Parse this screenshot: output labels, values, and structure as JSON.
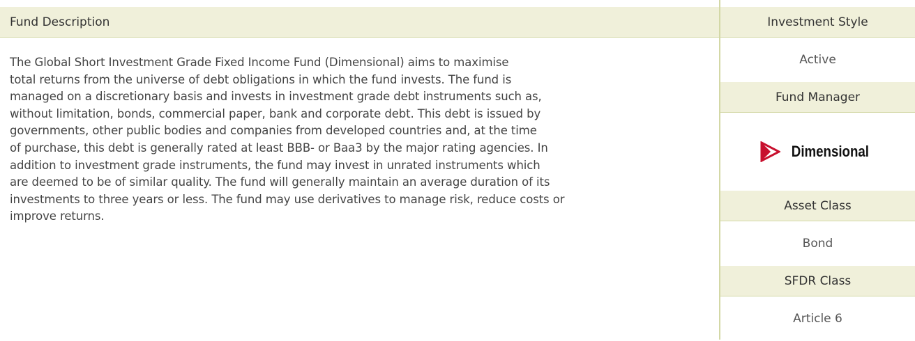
{
  "fund_description": {
    "title": "Fund Description",
    "lines": [
      "The Global Short Investment Grade Fixed Income Fund (Dimensional) aims to maximise",
      "total returns from the universe of debt obligations in which the fund invests. The fund is",
      "managed on a discretionary basis and invests in investment grade debt instruments such as,",
      "without limitation, bonds, commercial paper, bank and corporate debt. This debt is issued by",
      "governments, other public bodies and companies from developed countries and, at the time",
      "of purchase, this debt is generally rated at least BBB- or Baa3 by the major rating agencies. In",
      "addition to investment grade instruments, the fund may invest in unrated instruments which",
      "are deemed to be of similar quality. The fund will generally maintain an average duration of its",
      "investments to three years or less. The fund may use derivatives to manage risk, reduce costs or",
      "improve returns."
    ]
  },
  "sidebar": {
    "investment_style": {
      "label": "Investment Style",
      "value": "Active"
    },
    "fund_manager": {
      "label": "Fund Manager",
      "logo_text": "Dimensional"
    },
    "asset_class": {
      "label": "Asset Class",
      "value": "Bond"
    },
    "sfdr_class": {
      "label": "SFDR Class",
      "value": "Article 6"
    }
  }
}
